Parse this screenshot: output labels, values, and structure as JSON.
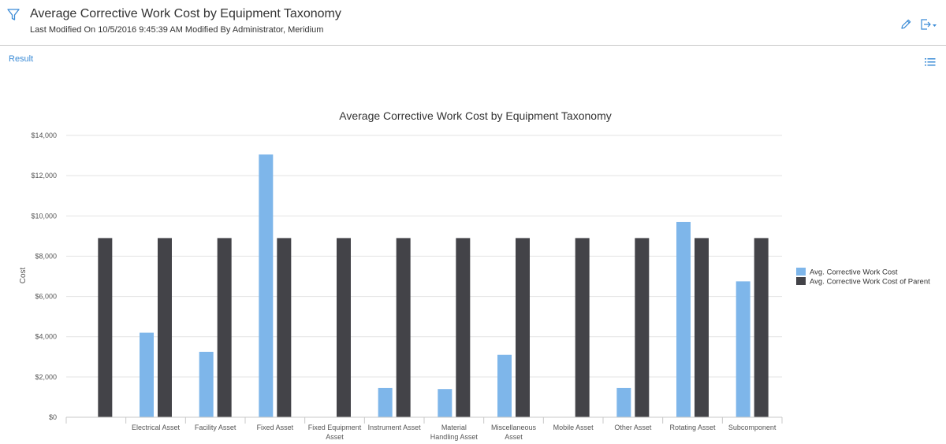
{
  "header": {
    "title": "Average Corrective Work Cost by Equipment Taxonomy",
    "subtitle": "Last Modified On 10/5/2016 9:45:39 AM Modified By Administrator, Meridium",
    "filter_icon": "filter-icon",
    "edit_icon": "pencil-icon",
    "export_icon": "export-icon"
  },
  "result": {
    "label": "Result",
    "list_icon": "list-icon"
  },
  "colors": {
    "series1": "#7eb6ea",
    "series2": "#434348",
    "link": "#3a8bd6"
  },
  "chart_data": {
    "type": "bar",
    "title": "Average Corrective Work Cost by Equipment Taxonomy",
    "xlabel": "",
    "ylabel": "Cost",
    "ylim": [
      0,
      14000
    ],
    "yticks": [
      0,
      2000,
      4000,
      6000,
      8000,
      10000,
      12000,
      14000
    ],
    "ytick_labels": [
      "$0",
      "$2,000",
      "$4,000",
      "$6,000",
      "$8,000",
      "$10,000",
      "$12,000",
      "$14,000"
    ],
    "grid": true,
    "legend_position": "right",
    "categories": [
      "",
      "Electrical Asset",
      "Facility Asset",
      "Fixed Asset",
      "Fixed Equipment Asset",
      "Instrument Asset",
      "Material Handling Asset",
      "Miscellaneous Asset",
      "Mobile Asset",
      "Other Asset",
      "Rotating Asset",
      "Subcomponent"
    ],
    "series": [
      {
        "name": "Avg. Corrective Work Cost",
        "values": [
          0,
          4200,
          3250,
          13050,
          0,
          1450,
          1400,
          3100,
          0,
          1450,
          9700,
          6750
        ]
      },
      {
        "name": "Avg. Corrective Work Cost of Parent",
        "values": [
          8900,
          8900,
          8900,
          8900,
          8900,
          8900,
          8900,
          8900,
          8900,
          8900,
          8900,
          8900
        ]
      }
    ]
  }
}
